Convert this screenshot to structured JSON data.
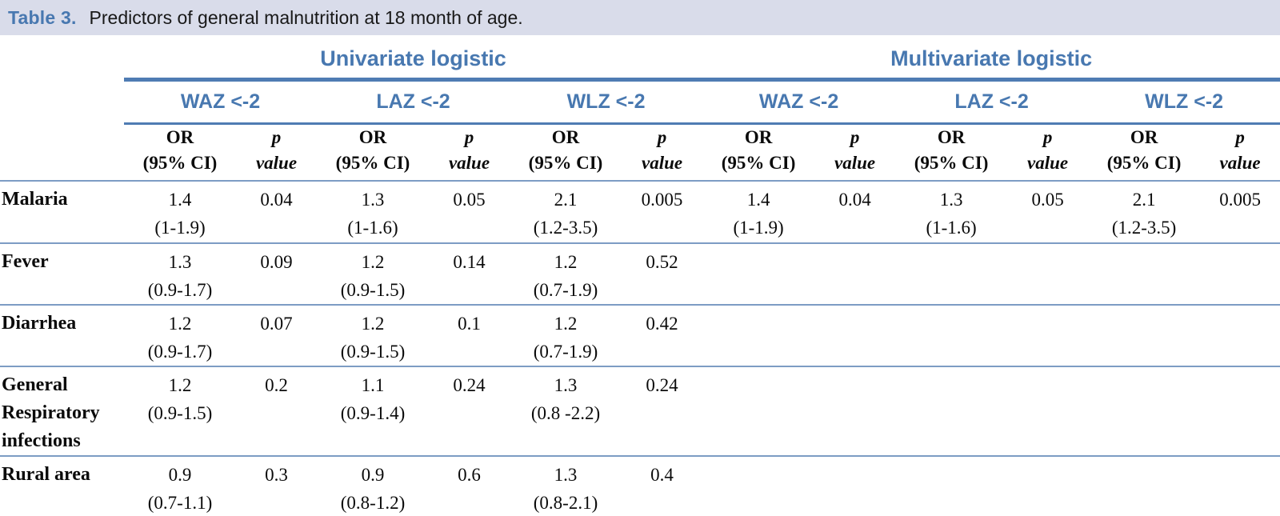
{
  "title": {
    "label": "Table 3.",
    "text": "Predictors of general malnutrition at 18 month of age."
  },
  "colors": {
    "accent_blue": "#4878b0",
    "thick_line_blue": "#4f7cb3",
    "thin_line_blue": "#7d9cc4",
    "title_bar_bg": "#d9dcea"
  },
  "header": {
    "groups": [
      {
        "label": "Univariate logistic"
      },
      {
        "label": "Multivariate logistic"
      }
    ],
    "measures": [
      "WAZ <-2",
      "LAZ <-2",
      "WLZ <-2",
      "WAZ <-2",
      "LAZ <-2",
      "WLZ <-2"
    ],
    "or_header": {
      "line1": "OR",
      "line2": "(95% CI)"
    },
    "p_header": {
      "line1": "p",
      "line2": "value"
    }
  },
  "rows": [
    {
      "label": "Malaria",
      "cells": [
        {
          "or": "1.4",
          "ci": "(1-1.9)",
          "p": "0.04"
        },
        {
          "or": "1.3",
          "ci": "(1-1.6)",
          "p": "0.05"
        },
        {
          "or": "2.1",
          "ci": "(1.2-3.5)",
          "p": "0.005"
        },
        {
          "or": "1.4",
          "ci": "(1-1.9)",
          "p": "0.04"
        },
        {
          "or": "1.3",
          "ci": "(1-1.6)",
          "p": "0.05"
        },
        {
          "or": "2.1",
          "ci": "(1.2-3.5)",
          "p": "0.005"
        }
      ]
    },
    {
      "label": "Fever",
      "cells": [
        {
          "or": "1.3",
          "ci": "(0.9-1.7)",
          "p": "0.09"
        },
        {
          "or": "1.2",
          "ci": "(0.9-1.5)",
          "p": "0.14"
        },
        {
          "or": "1.2",
          "ci": "(0.7-1.9)",
          "p": "0.52"
        },
        {
          "or": "",
          "ci": "",
          "p": ""
        },
        {
          "or": "",
          "ci": "",
          "p": ""
        },
        {
          "or": "",
          "ci": "",
          "p": ""
        }
      ]
    },
    {
      "label": "Diarrhea",
      "cells": [
        {
          "or": "1.2",
          "ci": "(0.9-1.7)",
          "p": "0.07"
        },
        {
          "or": "1.2",
          "ci": "(0.9-1.5)",
          "p": "0.1"
        },
        {
          "or": "1.2",
          "ci": "(0.7-1.9)",
          "p": "0.42"
        },
        {
          "or": "",
          "ci": "",
          "p": ""
        },
        {
          "or": "",
          "ci": "",
          "p": ""
        },
        {
          "or": "",
          "ci": "",
          "p": ""
        }
      ]
    },
    {
      "label": "General Respiratory infections",
      "cells": [
        {
          "or": "1.2",
          "ci": "(0.9-1.5)",
          "p": "0.2"
        },
        {
          "or": "1.1",
          "ci": "(0.9-1.4)",
          "p": "0.24"
        },
        {
          "or": "1.3",
          "ci": "(0.8 -2.2)",
          "p": "0.24"
        },
        {
          "or": "",
          "ci": "",
          "p": ""
        },
        {
          "or": "",
          "ci": "",
          "p": ""
        },
        {
          "or": "",
          "ci": "",
          "p": ""
        }
      ]
    },
    {
      "label": "Rural area",
      "cells": [
        {
          "or": "0.9",
          "ci": "(0.7-1.1)",
          "p": "0.3"
        },
        {
          "or": "0.9",
          "ci": "(0.8-1.2)",
          "p": "0.6"
        },
        {
          "or": "1.3",
          "ci": "(0.8-2.1)",
          "p": "0.4"
        },
        {
          "or": "",
          "ci": "",
          "p": ""
        },
        {
          "or": "",
          "ci": "",
          "p": ""
        },
        {
          "or": "",
          "ci": "",
          "p": ""
        }
      ]
    }
  ]
}
